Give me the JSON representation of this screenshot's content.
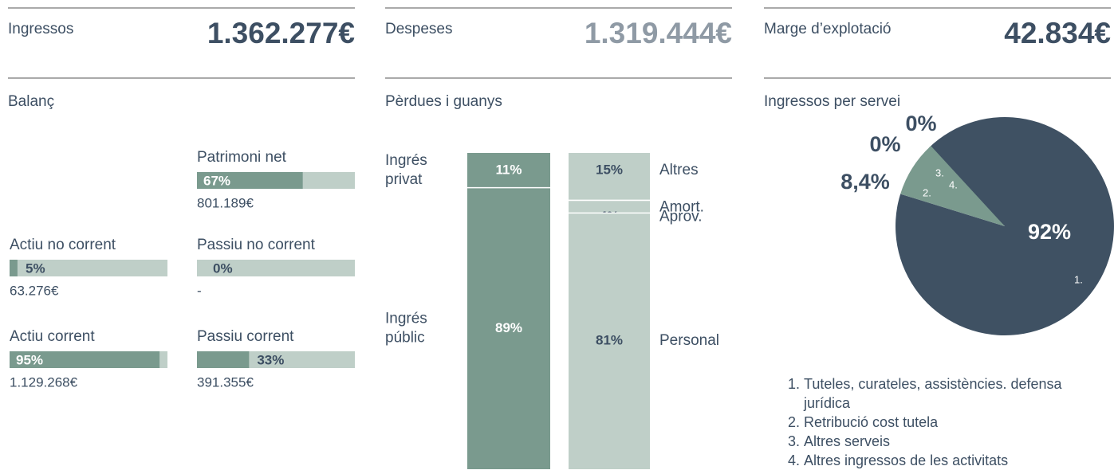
{
  "kpis": [
    {
      "label": "Ingressos",
      "value": "1.362.277€",
      "color": "#3d4f63"
    },
    {
      "label": "Despeses",
      "value": "1.319.444€",
      "color": "#8f9aa5"
    },
    {
      "label": "Marge d’explotació",
      "value": "42.834€",
      "color": "#3d4f63"
    }
  ],
  "balance": {
    "title": "Balanç",
    "items": [
      {
        "name": "Patrimoni net",
        "value": 67,
        "value_label": "67%",
        "amount": "801.189€"
      },
      {
        "name": "Actiu no corrent",
        "value": 5,
        "value_label": "5%",
        "amount": "63.276€"
      },
      {
        "name": "Passiu no corrent",
        "value": 0,
        "value_label": "0%",
        "amount": "-"
      },
      {
        "name": "Actiu corrent",
        "value": 95,
        "value_label": "95%",
        "amount": "1.129.268€"
      },
      {
        "name": "Passiu corrent",
        "value": 33,
        "value_label": "33%",
        "amount": "391.355€"
      }
    ]
  },
  "pnl": {
    "title": "Pèrdues i guanys",
    "income": {
      "color": "#7a9a8e",
      "categories": [
        "Ingrés privat",
        "Ingrés públic"
      ],
      "values": [
        11,
        89
      ],
      "value_labels": [
        "11%",
        "89%"
      ]
    },
    "expenses": {
      "color": "#bfcfc8",
      "categories": [
        "Altres",
        "Amort.",
        "Aprov.",
        "Personal"
      ],
      "values": [
        15,
        0,
        4,
        81
      ],
      "value_labels": [
        "15%",
        "0%",
        "4%",
        "81%"
      ]
    }
  },
  "pie": {
    "title": "Ingressos per servei",
    "numbers": [
      "1.",
      "2.",
      "3.",
      "4."
    ],
    "categories": [
      "Tuteles, curateles, assistències. defensa jurídica",
      "Retribució cost tutela",
      "Altres serveis",
      "Altres ingressos de les activitats"
    ],
    "values": [
      92,
      8.4,
      0,
      0
    ],
    "value_labels": [
      "92%",
      "8,4%",
      "0%",
      "0%"
    ],
    "colors": [
      "#3f5163",
      "#7a9a8e",
      "#7a9a8e",
      "#7a9a8e"
    ]
  }
}
